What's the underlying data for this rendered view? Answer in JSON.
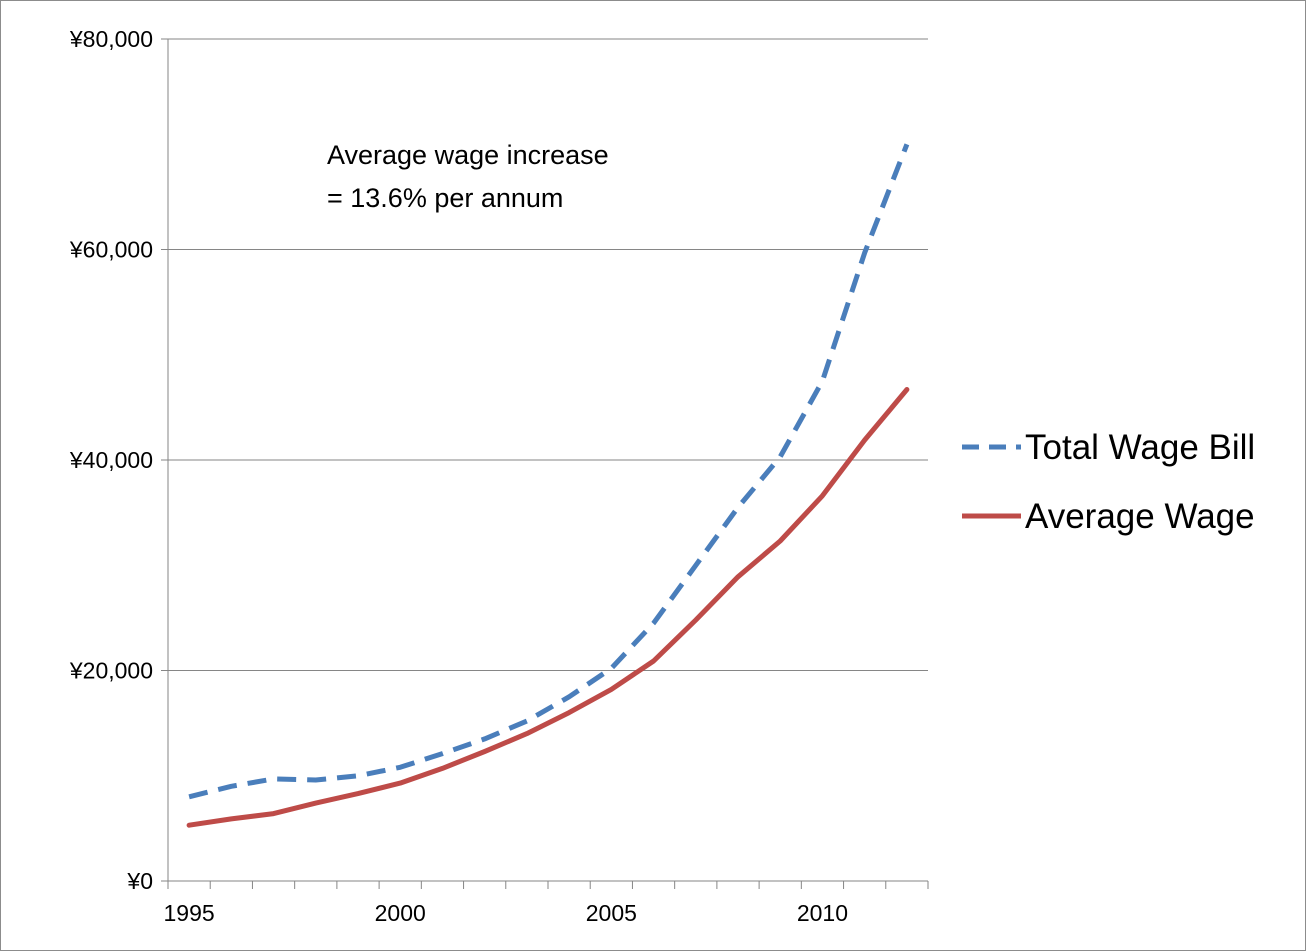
{
  "chart_data": {
    "type": "line",
    "x": [
      1995,
      1996,
      1997,
      1998,
      1999,
      2000,
      2001,
      2002,
      2003,
      2004,
      2005,
      2006,
      2007,
      2008,
      2009,
      2010,
      2011,
      2012
    ],
    "series": [
      {
        "name": "Total Wage Bill",
        "color": "#4a7ebb",
        "line_style": "dashed",
        "values": [
          8000,
          9000,
          9700,
          9600,
          10000,
          10800,
          12100,
          13500,
          15200,
          17500,
          20200,
          24500,
          30000,
          35500,
          40300,
          47500,
          59700,
          70000
        ]
      },
      {
        "name": "Average Wage",
        "color": "#be4b48",
        "line_style": "solid",
        "values": [
          5300,
          5900,
          6400,
          7400,
          8300,
          9300,
          10700,
          12300,
          14000,
          16000,
          18200,
          20900,
          24800,
          28900,
          32300,
          36600,
          41900,
          46700
        ]
      }
    ],
    "xlim": [
      1994.5,
      2012.5
    ],
    "x_ticks": [
      "1995",
      "2000",
      "2005",
      "2010"
    ],
    "x_tick_values": [
      1995,
      2000,
      2005,
      2010
    ],
    "ylim": [
      0,
      80000
    ],
    "y_ticks": [
      "¥0",
      "¥20,000",
      "¥40,000",
      "¥60,000",
      "¥80,000"
    ],
    "y_tick_values": [
      0,
      20000,
      40000,
      60000,
      80000
    ],
    "grid": "horizontal",
    "legend_position": "right",
    "annotation": [
      "Average wage increase",
      "= 13.6% per annum"
    ]
  }
}
